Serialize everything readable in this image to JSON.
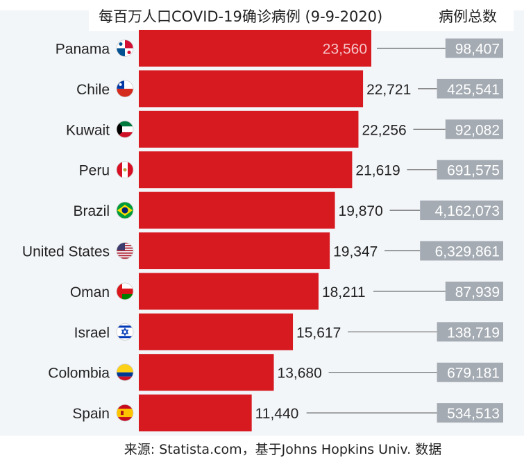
{
  "chart_data": {
    "type": "bar",
    "orientation": "horizontal",
    "title": "每百万人口COVID-19确诊病例 (9-9-2020)",
    "secondary_column_title": "病例总数",
    "categories": [
      "Panama",
      "Chile",
      "Kuwait",
      "Peru",
      "Brazil",
      "United States",
      "Oman",
      "Israel",
      "Colombia",
      "Spain"
    ],
    "flag_icons": [
      "panama-flag-icon",
      "chile-flag-icon",
      "kuwait-flag-icon",
      "peru-flag-icon",
      "brazil-flag-icon",
      "united-states-flag-icon",
      "oman-flag-icon",
      "israel-flag-icon",
      "colombia-flag-icon",
      "spain-flag-icon"
    ],
    "values": [
      23560,
      22721,
      22256,
      21619,
      19870,
      19347,
      18211,
      15617,
      13680,
      11440
    ],
    "value_labels": [
      "23,560",
      "22,721",
      "22,256",
      "21,619",
      "19,870",
      "19,347",
      "18,211",
      "15,617",
      "13,680",
      "11,440"
    ],
    "total_cases": [
      98407,
      425541,
      92082,
      691575,
      4162073,
      6329861,
      87939,
      138719,
      679181,
      534513
    ],
    "total_labels": [
      "98,407",
      "425,541",
      "92,082",
      "691,575",
      "4,162,073",
      "6,329,861",
      "87,939",
      "138,719",
      "679,181",
      "534,513"
    ],
    "source": "来源: Statista.com，基于Johns Hopkins Univ. 数据",
    "colors": {
      "bar": "#d71920",
      "total_box": "#a4abb3",
      "background": "#f3f6f9"
    },
    "grid": false
  }
}
